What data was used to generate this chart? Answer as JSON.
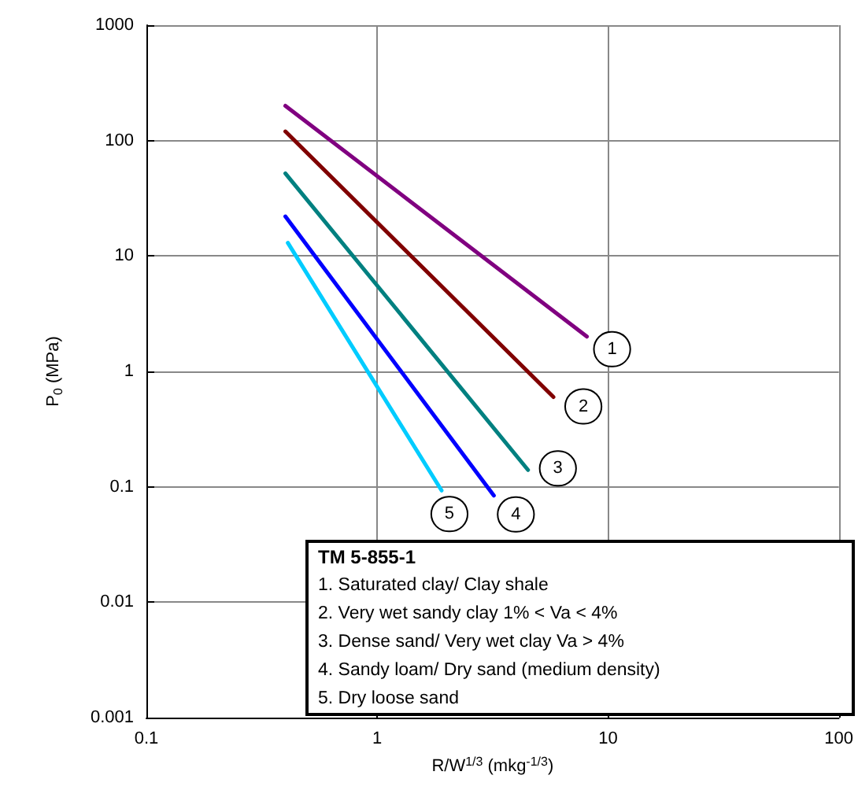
{
  "chart_data": {
    "type": "line",
    "xlabel": "R/W$^{1/3}$ (mkg$^{-1/3}$)",
    "ylabel": "P$_{0}$ (MPa)",
    "log": "xy",
    "grid": true,
    "legend": false,
    "marker": "none",
    "line_style": "solid",
    "xlim": [
      0.1,
      100
    ],
    "xticks": [
      0.1,
      1,
      10,
      100
    ],
    "ylim": [
      0.001,
      1000
    ],
    "yticks": [
      0.001,
      0.01,
      0.1,
      1,
      10,
      100,
      1000
    ],
    "series": [
      {
        "name": "1",
        "color": "#800080",
        "x": [
          0.4,
          8.1
        ],
        "values": [
          200,
          2
        ]
      },
      {
        "name": "2",
        "color": "#800000",
        "x": [
          0.4,
          5.8
        ],
        "values": [
          120,
          0.6
        ]
      },
      {
        "name": "3",
        "color": "#008080",
        "x": [
          0.4,
          4.5
        ],
        "values": [
          52,
          0.14
        ]
      },
      {
        "name": "4",
        "color": "#0000ff",
        "x": [
          0.4,
          3.2
        ],
        "values": [
          22,
          0.084
        ]
      },
      {
        "name": "5",
        "color": "#00ccff",
        "x": [
          0.41,
          1.9
        ],
        "values": [
          13,
          0.093
        ]
      }
    ],
    "annotations": [
      "TM 5-855-1",
      "1. Saturated clay/ Clay shale",
      "2. Very wet sandy clay 1% < Va < 4%",
      "3. Dense sand/ Very wet clay Va > 4%",
      "4. Sandy loam/ Dry sand (medium density)",
      "5. Dry loose sand"
    ]
  }
}
